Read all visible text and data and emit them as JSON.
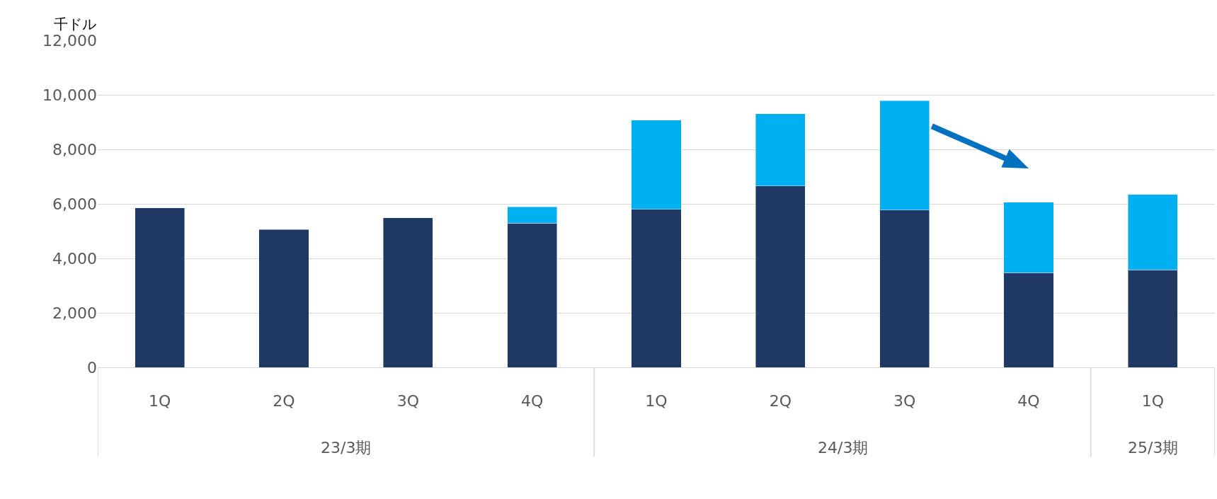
{
  "chart_data": {
    "type": "bar",
    "stacked": true,
    "ylabel": "千ドル",
    "categories": [
      "1Q",
      "2Q",
      "3Q",
      "4Q",
      "1Q",
      "2Q",
      "3Q",
      "4Q",
      "1Q"
    ],
    "annotations": [
      "23/3期",
      "24/3期",
      "25/3期"
    ],
    "series": [
      {
        "color": "#203864",
        "values": [
          5850,
          5060,
          5490,
          5290,
          5800,
          6650,
          5770,
          3470,
          3580
        ]
      },
      {
        "color": "#00b0f0",
        "values": [
          null,
          null,
          null,
          600,
          3270,
          2650,
          4010,
          2590,
          2760
        ]
      }
    ],
    "ylim": [
      0,
      12000
    ],
    "yticks": [
      0,
      {
        "value": 2000,
        "label": "2,000"
      },
      {
        "value": 4000,
        "label": "4,000"
      },
      {
        "value": 6000,
        "label": "6,000"
      },
      {
        "value": 8000,
        "label": "8,000"
      },
      {
        "value": 10000,
        "label": "10,000"
      },
      {
        "value": 12000,
        "label": "12,000"
      }
    ],
    "grid": "y"
  }
}
